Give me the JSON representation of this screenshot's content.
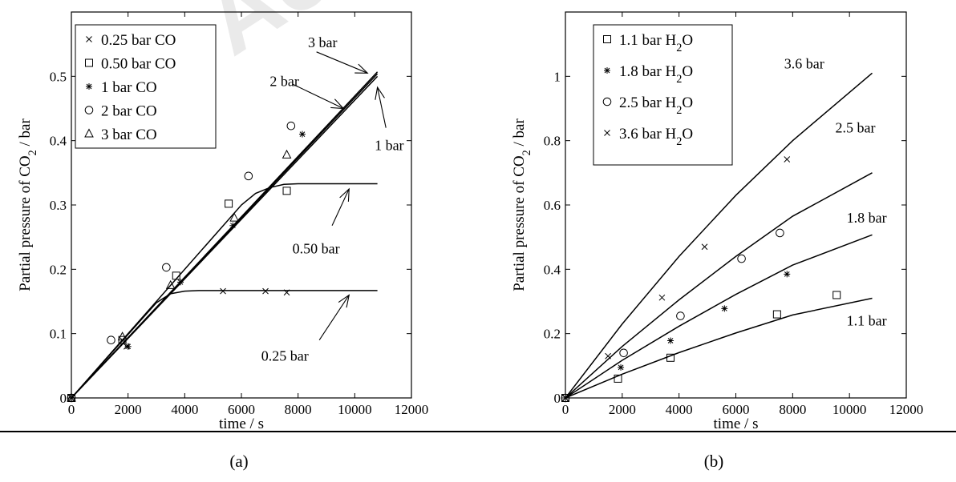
{
  "watermark": "Accepted",
  "captions": [
    "(a)",
    "(b)"
  ],
  "chart_data": [
    {
      "type": "line",
      "panel": "(a)",
      "xlabel": "time / s",
      "ylabel": "Partial pressure of CO_2 / bar",
      "xlim": [
        0,
        12000
      ],
      "ylim": [
        0,
        0.6
      ],
      "xticks": [
        0,
        2000,
        4000,
        6000,
        8000,
        10000,
        12000
      ],
      "yticks": [
        0,
        0.1,
        0.2,
        0.3,
        0.4,
        0.5
      ],
      "grid": false,
      "legend_position": "top-left",
      "series": [
        {
          "name": "0.25 bar CO",
          "marker": "x",
          "points": [
            [
              0,
              0
            ],
            [
              1800,
              0.09
            ],
            [
              1950,
              0.08
            ],
            [
              5350,
              0.166
            ],
            [
              6850,
              0.166
            ],
            [
              7600,
              0.164
            ]
          ]
        },
        {
          "name": "0.50 bar CO",
          "marker": "square",
          "points": [
            [
              0,
              0
            ],
            [
              1800,
              0.09
            ],
            [
              3700,
              0.19
            ],
            [
              5550,
              0.302
            ],
            [
              7600,
              0.322
            ]
          ]
        },
        {
          "name": "1 bar CO",
          "marker": "star",
          "points": [
            [
              0,
              0
            ],
            [
              2000,
              0.08
            ],
            [
              3850,
              0.18
            ],
            [
              5700,
              0.268
            ],
            [
              8150,
              0.41
            ]
          ]
        },
        {
          "name": "2 bar CO",
          "marker": "circle",
          "points": [
            [
              0,
              0
            ],
            [
              1400,
              0.09
            ],
            [
              3350,
              0.203
            ],
            [
              6250,
              0.345
            ],
            [
              7750,
              0.423
            ]
          ]
        },
        {
          "name": "3 bar CO",
          "marker": "triangle",
          "points": [
            [
              0,
              0
            ],
            [
              1800,
              0.095
            ],
            [
              3500,
              0.175
            ],
            [
              5750,
              0.28
            ],
            [
              7600,
              0.378
            ]
          ]
        }
      ],
      "model_curves": [
        {
          "label": "0.25 bar",
          "points": [
            [
              0,
              0
            ],
            [
              3000,
              0.148
            ],
            [
              3500,
              0.162
            ],
            [
              4000,
              0.166
            ],
            [
              4500,
              0.167
            ],
            [
              10800,
              0.167
            ]
          ]
        },
        {
          "label": "0.50 bar",
          "points": [
            [
              0,
              0
            ],
            [
              6000,
              0.3
            ],
            [
              6500,
              0.318
            ],
            [
              7000,
              0.327
            ],
            [
              7500,
              0.332
            ],
            [
              8000,
              0.333
            ],
            [
              10800,
              0.333
            ]
          ]
        },
        {
          "label": "1 bar",
          "points": [
            [
              0,
              0
            ],
            [
              10800,
              0.5
            ]
          ]
        },
        {
          "label": "2 bar",
          "points": [
            [
              0,
              0
            ],
            [
              10800,
              0.504
            ]
          ]
        },
        {
          "label": "3 bar",
          "points": [
            [
              0,
              0
            ],
            [
              10800,
              0.507
            ]
          ]
        }
      ],
      "annotations": [
        {
          "text": "3 bar",
          "text_at": [
            8350,
            0.545
          ],
          "arrow_from": [
            8650,
            0.538
          ],
          "arrow_to": [
            10450,
            0.505
          ]
        },
        {
          "text": "2 bar",
          "text_at": [
            7000,
            0.485
          ],
          "arrow_from": [
            7800,
            0.488
          ],
          "arrow_to": [
            9600,
            0.45
          ]
        },
        {
          "text": "1 bar",
          "text_at": [
            10700,
            0.385
          ],
          "arrow_from": [
            11100,
            0.42
          ],
          "arrow_to": [
            10800,
            0.483
          ]
        },
        {
          "text": "0.50 bar",
          "text_at": [
            7800,
            0.225
          ],
          "arrow_from": [
            9200,
            0.268
          ],
          "arrow_to": [
            9800,
            0.325
          ]
        },
        {
          "text": "0.25 bar",
          "text_at": [
            6700,
            0.058
          ],
          "arrow_from": [
            8750,
            0.09
          ],
          "arrow_to": [
            9800,
            0.16
          ]
        }
      ]
    },
    {
      "type": "line",
      "panel": "(b)",
      "xlabel": "time / s",
      "ylabel": "Partial pressure of CO_2 / bar",
      "xlim": [
        0,
        12000
      ],
      "ylim": [
        0,
        1.2
      ],
      "xticks": [
        0,
        2000,
        4000,
        6000,
        8000,
        10000,
        12000
      ],
      "yticks": [
        0,
        0.2,
        0.4,
        0.6,
        0.8,
        1
      ],
      "grid": false,
      "legend_position": "top-left",
      "series": [
        {
          "name": "1.1 bar H_2O",
          "marker": "square",
          "points": [
            [
              0,
              0
            ],
            [
              1850,
              0.06
            ],
            [
              3700,
              0.125
            ],
            [
              7450,
              0.26
            ],
            [
              9550,
              0.32
            ]
          ]
        },
        {
          "name": "1.8 bar H_2O",
          "marker": "star",
          "points": [
            [
              0,
              0
            ],
            [
              1950,
              0.095
            ],
            [
              3700,
              0.178
            ],
            [
              5600,
              0.278
            ],
            [
              7800,
              0.385
            ]
          ]
        },
        {
          "name": "2.5 bar H_2O",
          "marker": "circle",
          "points": [
            [
              0,
              0
            ],
            [
              2050,
              0.14
            ],
            [
              4050,
              0.255
            ],
            [
              6200,
              0.433
            ],
            [
              7550,
              0.513
            ]
          ]
        },
        {
          "name": "3.6 bar H_2O",
          "marker": "x",
          "points": [
            [
              0,
              0
            ],
            [
              1500,
              0.13
            ],
            [
              3400,
              0.312
            ],
            [
              4900,
              0.47
            ],
            [
              7800,
              0.742
            ]
          ]
        }
      ],
      "model_curves": [
        {
          "label": "1.1 bar",
          "points": [
            [
              0,
              0
            ],
            [
              2000,
              0.074
            ],
            [
              4000,
              0.141
            ],
            [
              6000,
              0.202
            ],
            [
              8000,
              0.258
            ],
            [
              10800,
              0.31
            ]
          ]
        },
        {
          "label": "1.8 bar",
          "points": [
            [
              0,
              0
            ],
            [
              2000,
              0.117
            ],
            [
              4000,
              0.223
            ],
            [
              6000,
              0.322
            ],
            [
              8000,
              0.413
            ],
            [
              10800,
              0.507
            ]
          ]
        },
        {
          "label": "2.5 bar",
          "points": [
            [
              0,
              0
            ],
            [
              2000,
              0.16
            ],
            [
              4000,
              0.305
            ],
            [
              6000,
              0.44
            ],
            [
              8000,
              0.565
            ],
            [
              10800,
              0.7
            ]
          ]
        },
        {
          "label": "3.6 bar",
          "points": [
            [
              0,
              0
            ],
            [
              2000,
              0.23
            ],
            [
              4000,
              0.44
            ],
            [
              6000,
              0.63
            ],
            [
              8000,
              0.8
            ],
            [
              10800,
              1.01
            ]
          ]
        }
      ],
      "annotations": [
        {
          "text": "3.6 bar",
          "text_at": [
            7700,
            1.025
          ]
        },
        {
          "text": "2.5 bar",
          "text_at": [
            9500,
            0.825
          ]
        },
        {
          "text": "1.8 bar",
          "text_at": [
            9900,
            0.545
          ]
        },
        {
          "text": "1.1 bar",
          "text_at": [
            9900,
            0.225
          ]
        }
      ]
    }
  ]
}
